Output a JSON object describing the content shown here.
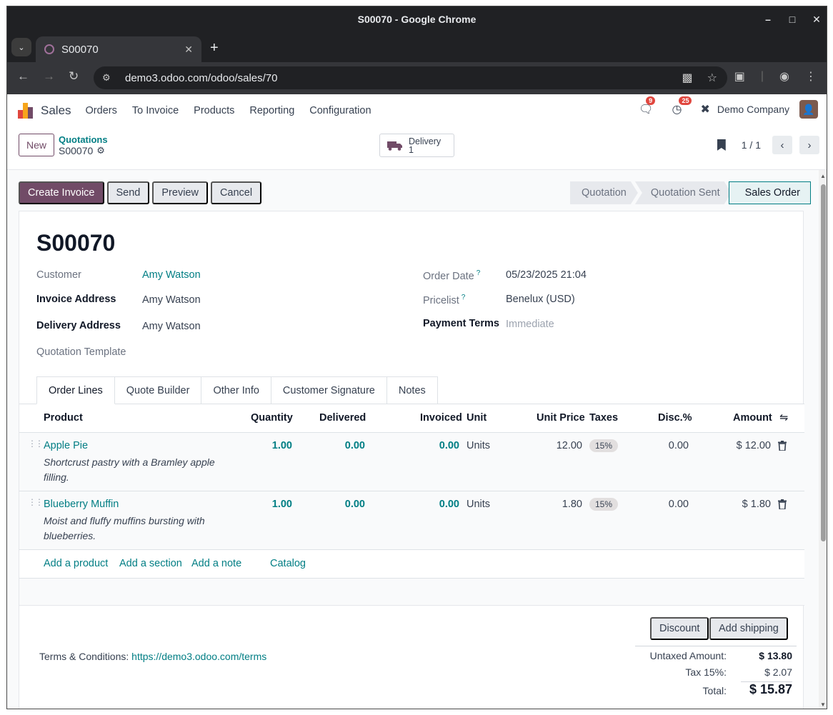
{
  "browser": {
    "window_title": "S00070 - Google Chrome",
    "tab_title": "S00070",
    "url": "demo3.odoo.com/odoo/sales/70"
  },
  "navbar": {
    "brand": "Sales",
    "menus": [
      "Orders",
      "To Invoice",
      "Products",
      "Reporting",
      "Configuration"
    ],
    "messages_count": "9",
    "activities_count": "25",
    "company": "Demo Company"
  },
  "control_panel": {
    "new_label": "New",
    "breadcrumb_parent": "Quotations",
    "breadcrumb_current": "S00070",
    "delivery_label": "Delivery",
    "delivery_count": "1",
    "pager": "1 / 1"
  },
  "actions": {
    "create_invoice": "Create Invoice",
    "send": "Send",
    "preview": "Preview",
    "cancel": "Cancel"
  },
  "stages": [
    "Quotation",
    "Quotation Sent",
    "Sales Order"
  ],
  "active_stage": "Sales Order",
  "order": {
    "name": "S00070",
    "customer_label": "Customer",
    "customer": "Amy Watson",
    "invoice_address_label": "Invoice Address",
    "invoice_address": "Amy Watson",
    "delivery_address_label": "Delivery Address",
    "delivery_address": "Amy Watson",
    "quotation_template_label": "Quotation Template",
    "order_date_label": "Order Date",
    "order_date": "05/23/2025 21:04",
    "pricelist_label": "Pricelist",
    "pricelist": "Benelux (USD)",
    "payment_terms_label": "Payment Terms",
    "payment_terms": "Immediate",
    "help_mark": "?"
  },
  "tabs": [
    "Order Lines",
    "Quote Builder",
    "Other Info",
    "Customer Signature",
    "Notes"
  ],
  "lines": {
    "headers": {
      "product": "Product",
      "quantity": "Quantity",
      "delivered": "Delivered",
      "invoiced": "Invoiced",
      "unit": "Unit",
      "unit_price": "Unit Price",
      "taxes": "Taxes",
      "discount": "Disc.%",
      "amount": "Amount"
    },
    "rows": [
      {
        "product": "Apple Pie",
        "description": "Shortcrust pastry with a Bramley apple filling.",
        "quantity": "1.00",
        "delivered": "0.00",
        "invoiced": "0.00",
        "unit": "Units",
        "unit_price": "12.00",
        "tax": "15%",
        "discount": "0.00",
        "amount": "$ 12.00"
      },
      {
        "product": "Blueberry Muffin",
        "description": "Moist and fluffy muffins bursting with blueberries.",
        "quantity": "1.00",
        "delivered": "0.00",
        "invoiced": "0.00",
        "unit": "Units",
        "unit_price": "1.80",
        "tax": "15%",
        "discount": "0.00",
        "amount": "$ 1.80"
      }
    ],
    "add_product": "Add a product",
    "add_section": "Add a section",
    "add_note": "Add a note",
    "catalog": "Catalog"
  },
  "footer": {
    "discount": "Discount",
    "add_shipping": "Add shipping",
    "terms_label": "Terms & Conditions:",
    "terms_link": "https://demo3.odoo.com/terms",
    "untaxed_label": "Untaxed Amount:",
    "untaxed": "$ 13.80",
    "tax_label": "Tax 15%:",
    "tax": "$ 2.07",
    "total_label": "Total:",
    "total": "$ 15.87"
  },
  "colors": {
    "brand": "#714b67",
    "link": "#017e84"
  }
}
